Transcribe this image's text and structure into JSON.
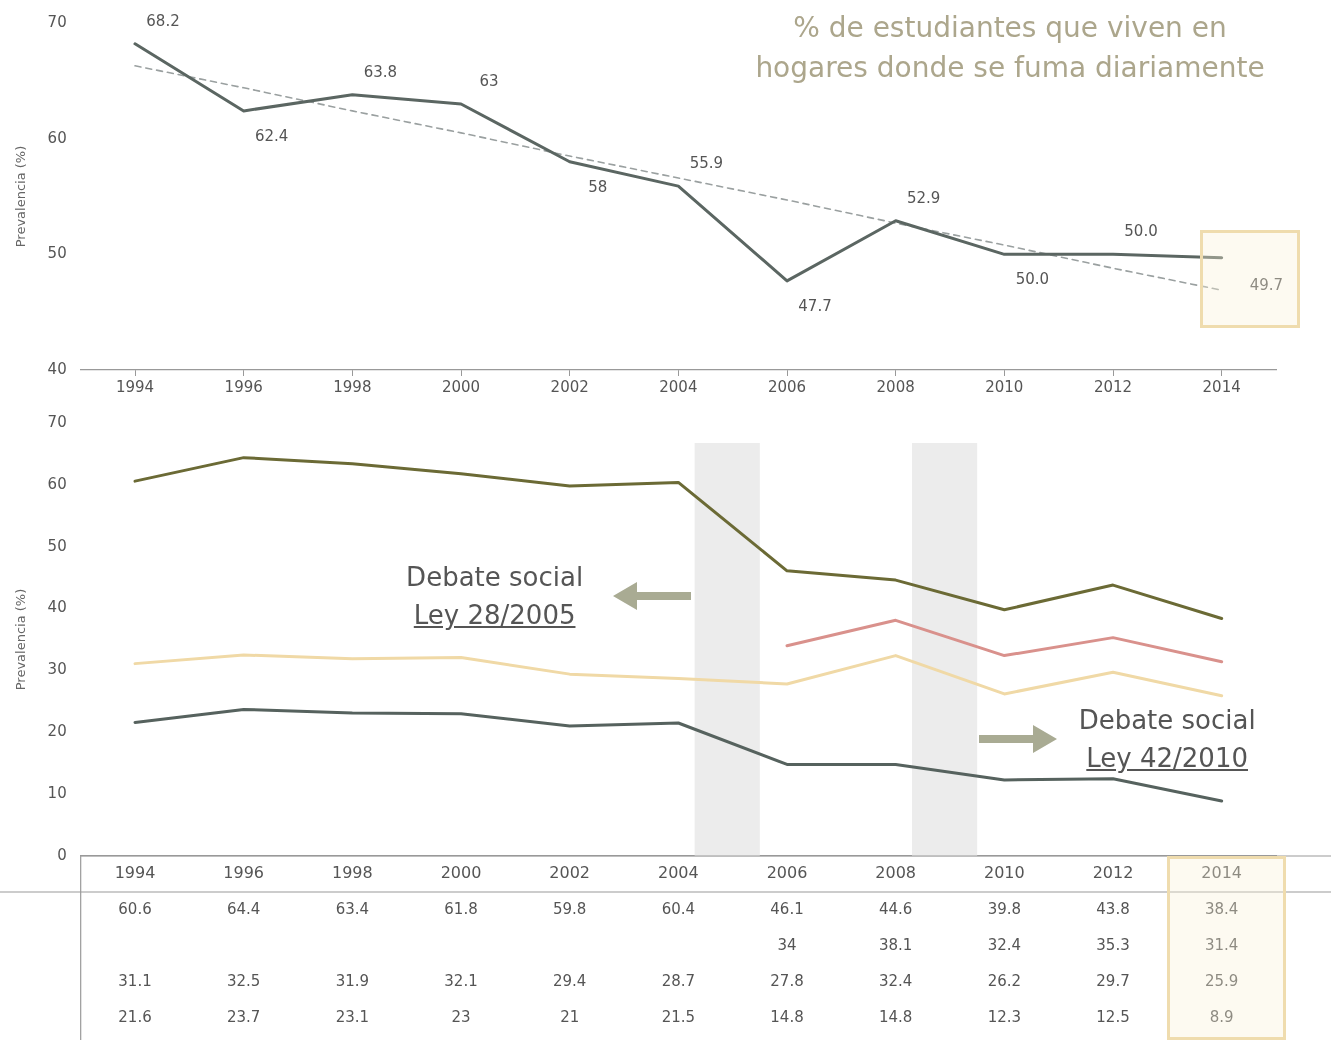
{
  "chart_data": [
    {
      "type": "line",
      "title": "% de estudiantes que viven en hogares donde se fuma diariamente",
      "ylabel": "Prevalencia (%)",
      "categories": [
        "1994",
        "1996",
        "1998",
        "2000",
        "2002",
        "2004",
        "2006",
        "2008",
        "2010",
        "2012",
        "2014"
      ],
      "ylim": [
        40,
        70
      ],
      "yticks": [
        40,
        50,
        60,
        70
      ],
      "grid": false,
      "legend": false,
      "marker": "none",
      "series": [
        {
          "color": "#5b6662",
          "values": [
            68.2,
            62.4,
            63.8,
            63,
            58,
            55.9,
            47.7,
            52.9,
            50.0,
            50.0,
            49.7
          ],
          "value_labels": [
            "68.2",
            "62.4",
            "63.8",
            "63",
            "58",
            "55.9",
            "47.7",
            "52.9",
            "50.0",
            "50.0",
            "49.7"
          ]
        },
        {
          "values": [
            66.3,
            64.4,
            62.4,
            60.5,
            58.5,
            56.6,
            54.7,
            52.7,
            50.8,
            48.8,
            46.9
          ],
          "color": "#9aa0a0",
          "line_style": "dashed"
        }
      ]
    },
    {
      "type": "line",
      "ylabel": "Prevalencia (%)",
      "categories": [
        "1994",
        "1996",
        "1998",
        "2000",
        "2002",
        "2004",
        "2006",
        "2008",
        "2010",
        "2012",
        "2014"
      ],
      "ylim": [
        0,
        70
      ],
      "yticks": [
        0,
        10,
        20,
        30,
        40,
        50,
        60,
        70
      ],
      "grid": false,
      "legend": false,
      "marker": "none",
      "data_labels": true,
      "annotations": [
        "Debate social\nLey 28/2005",
        "Debate social\nLey 42/2010"
      ],
      "bands": [
        {
          "axis": "x",
          "from": "2004",
          "to": "2006",
          "color": "#ececec"
        },
        {
          "axis": "x",
          "from": "2008",
          "to": "2010",
          "color": "#ececec"
        }
      ],
      "series": [
        {
          "color": "#6b6a35",
          "values": [
            60.6,
            64.4,
            63.4,
            61.8,
            59.8,
            60.4,
            46.1,
            44.6,
            39.8,
            43.8,
            38.4
          ]
        },
        {
          "color": "#d9918c",
          "values": [
            null,
            null,
            null,
            null,
            null,
            null,
            34,
            38.1,
            32.4,
            35.3,
            31.4
          ]
        },
        {
          "color": "#f0d9a6",
          "values": [
            31.1,
            32.5,
            31.9,
            32.1,
            29.4,
            28.7,
            27.8,
            32.4,
            26.2,
            29.7,
            25.9
          ]
        },
        {
          "color": "#56625e",
          "values": [
            21.6,
            23.7,
            23.1,
            23,
            21,
            21.5,
            14.8,
            14.8,
            12.3,
            12.5,
            8.9
          ]
        }
      ]
    }
  ]
}
